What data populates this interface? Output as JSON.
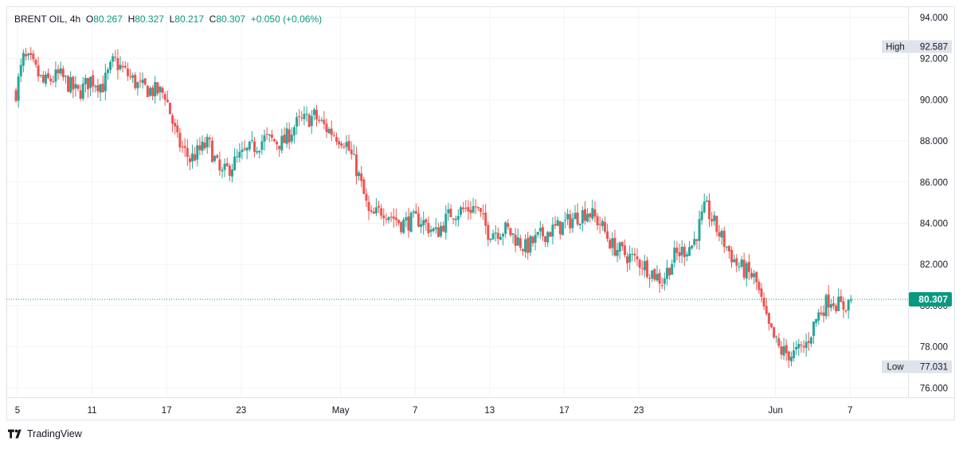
{
  "header": {
    "symbol": "BRENT OIL",
    "interval": "4h",
    "o_label": "O",
    "o_value": "80.267",
    "h_label": "H",
    "h_value": "80.327",
    "l_label": "L",
    "l_value": "80.217",
    "c_label": "C",
    "c_value": "80.307",
    "change": "+0.050 (+0.06%)"
  },
  "brand": {
    "name": "TradingView",
    "logo_icon": "tradingview-logo-icon"
  },
  "colors": {
    "up": "#26a69a",
    "down": "#ef5350",
    "grid": "#f0f3fa",
    "axis_text": "#131722",
    "last_price_bg": "#089981",
    "badge_bg": "#e0e3eb"
  },
  "chart_data": {
    "type": "candlestick",
    "symbol": "BRENT OIL",
    "interval": "4h",
    "y_axis": {
      "range": [
        75.5,
        94.2
      ],
      "ticks": [
        "94.000",
        "92.000",
        "90.000",
        "88.000",
        "86.000",
        "84.000",
        "82.000",
        "80.000",
        "78.000",
        "76.000"
      ]
    },
    "x_axis": {
      "ticks": [
        "5",
        "11",
        "17",
        "23",
        "May",
        "7",
        "13",
        "17",
        "23",
        "Jun",
        "7"
      ]
    },
    "high_label": "High",
    "high_value": "92.587",
    "low_label": "Low",
    "low_value": "77.031",
    "last_price": "80.307",
    "anchors": [
      {
        "d": 0,
        "p": 90.4
      },
      {
        "d": 0.6,
        "p": 92.0
      },
      {
        "d": 1.2,
        "p": 91.8
      },
      {
        "d": 2.2,
        "p": 90.8
      },
      {
        "d": 3.5,
        "p": 91.2
      },
      {
        "d": 5,
        "p": 90.3
      },
      {
        "d": 6,
        "p": 91.0
      },
      {
        "d": 7,
        "p": 90.7
      },
      {
        "d": 7.9,
        "p": 91.9
      },
      {
        "d": 9,
        "p": 91.2
      },
      {
        "d": 10,
        "p": 90.6
      },
      {
        "d": 12,
        "p": 90.3
      },
      {
        "d": 13,
        "p": 88.0
      },
      {
        "d": 14,
        "p": 87.1
      },
      {
        "d": 15.5,
        "p": 87.9
      },
      {
        "d": 16.5,
        "p": 86.3
      },
      {
        "d": 18,
        "p": 87.2
      },
      {
        "d": 20,
        "p": 88.1
      },
      {
        "d": 21.5,
        "p": 87.9
      },
      {
        "d": 22.5,
        "p": 88.8
      },
      {
        "d": 24,
        "p": 89.2
      },
      {
        "d": 25,
        "p": 88.6
      },
      {
        "d": 26.5,
        "p": 88.0
      },
      {
        "d": 27.5,
        "p": 86.5
      },
      {
        "d": 28.5,
        "p": 84.2
      },
      {
        "d": 29.5,
        "p": 84.7
      },
      {
        "d": 31,
        "p": 84.0
      },
      {
        "d": 32.5,
        "p": 84.2
      },
      {
        "d": 33.8,
        "p": 83.5
      },
      {
        "d": 35,
        "p": 84.5
      },
      {
        "d": 37,
        "p": 84.8
      },
      {
        "d": 38,
        "p": 83.6
      },
      {
        "d": 39.5,
        "p": 83.7
      },
      {
        "d": 41,
        "p": 82.8
      },
      {
        "d": 42.5,
        "p": 83.5
      },
      {
        "d": 44,
        "p": 83.9
      },
      {
        "d": 45,
        "p": 84.3
      },
      {
        "d": 46,
        "p": 84.6
      },
      {
        "d": 47,
        "p": 84.0
      },
      {
        "d": 48,
        "p": 82.9
      },
      {
        "d": 49,
        "p": 82.5
      },
      {
        "d": 50.5,
        "p": 82.0
      },
      {
        "d": 52,
        "p": 81.2
      },
      {
        "d": 53,
        "p": 82.4
      },
      {
        "d": 54.5,
        "p": 83.0
      },
      {
        "d": 55.5,
        "p": 84.8
      },
      {
        "d": 56.5,
        "p": 83.6
      },
      {
        "d": 58,
        "p": 82.0
      },
      {
        "d": 59.5,
        "p": 81.3
      },
      {
        "d": 60.5,
        "p": 79.0
      },
      {
        "d": 61.5,
        "p": 77.8
      },
      {
        "d": 62.5,
        "p": 77.6
      },
      {
        "d": 63.5,
        "p": 78.0
      },
      {
        "d": 64.5,
        "p": 79.5
      },
      {
        "d": 65.5,
        "p": 80.4
      },
      {
        "d": 66.5,
        "p": 79.9
      },
      {
        "d": 67.3,
        "p": 80.3
      }
    ]
  }
}
